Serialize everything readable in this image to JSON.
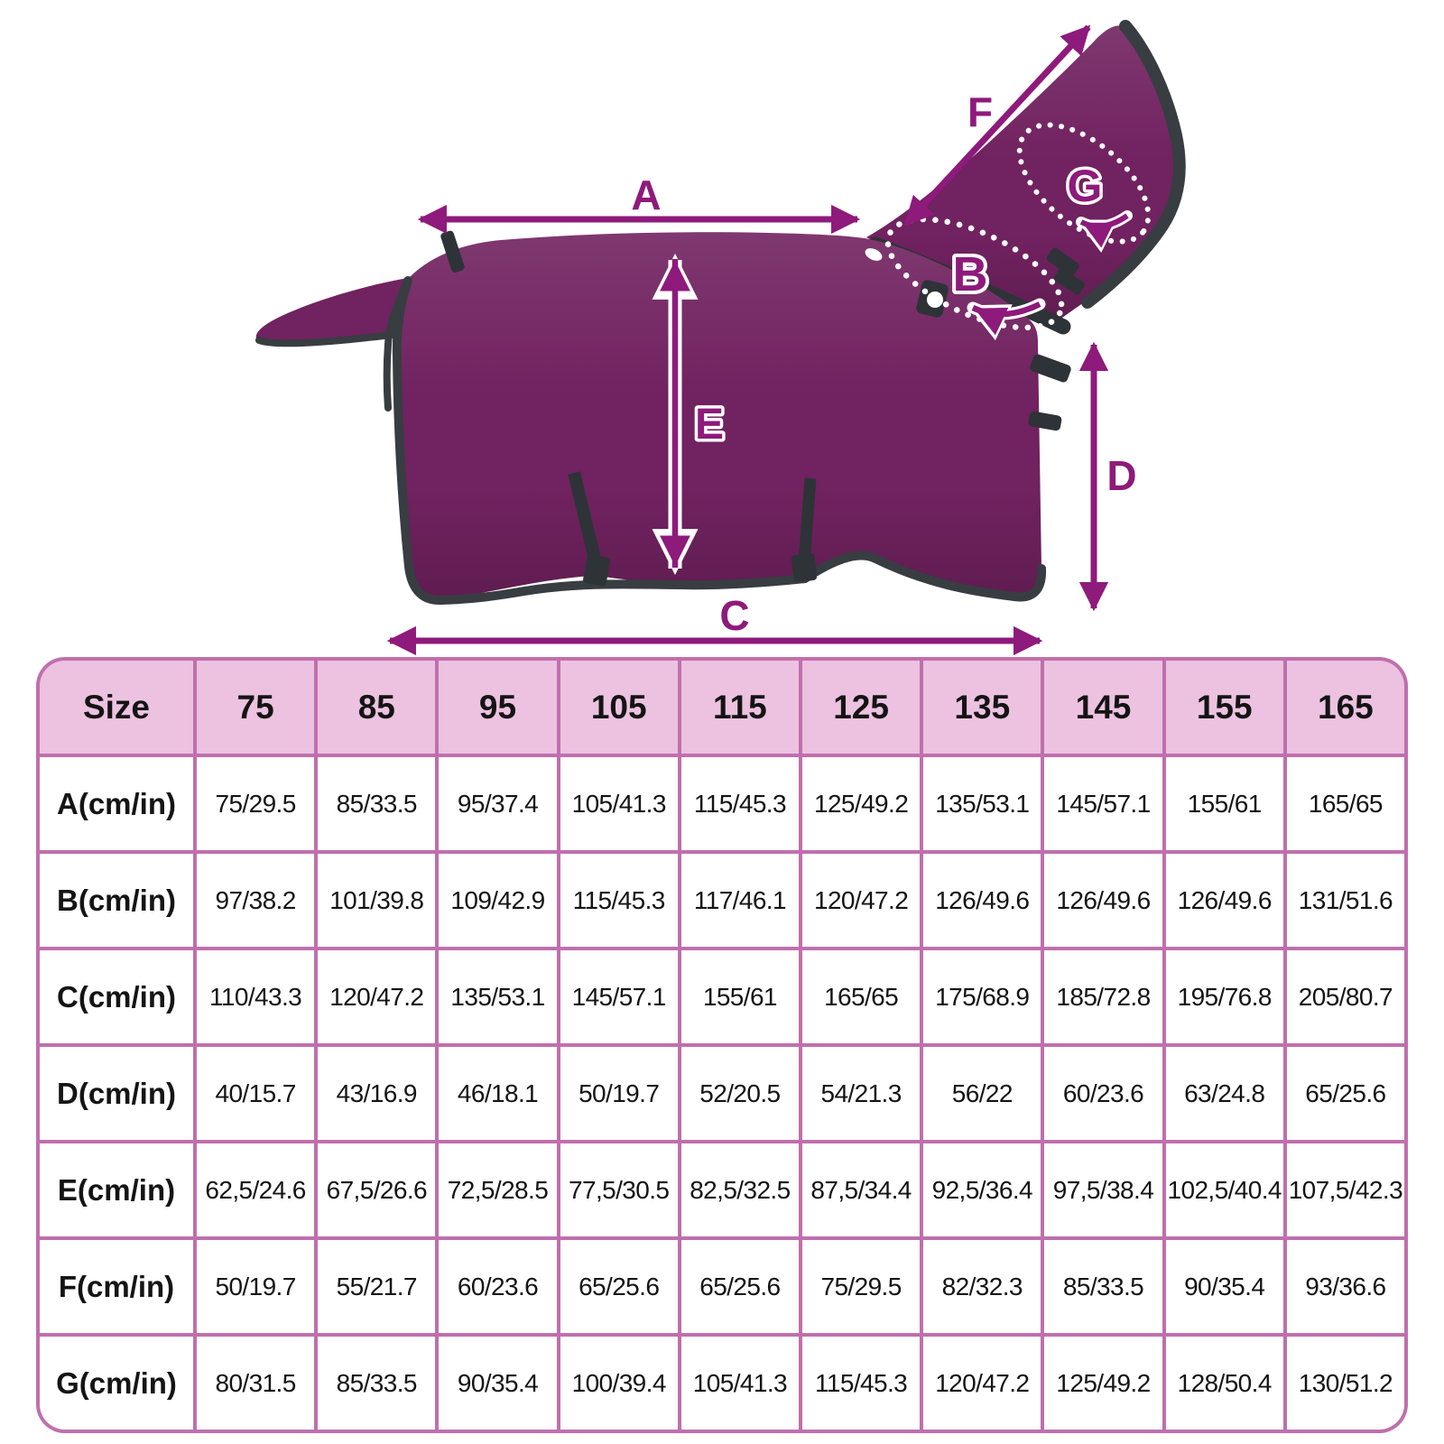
{
  "colors": {
    "arrow": "#8e1a7b",
    "blanket": "#712260",
    "trim": "#383d42",
    "strap": "#2e3338",
    "table-border": "#c06fad",
    "table-header-bg": "#ecc2e0",
    "table-cell-bg": "#ffffff",
    "table-text": "#141414",
    "label-outline": "#ffffff"
  },
  "diagram": {
    "description": "horse rug with detachable neck cover, measurement guide",
    "labels": {
      "a": "A",
      "b": "B",
      "c": "C",
      "d": "D",
      "e": "E",
      "f": "F",
      "g": "G"
    }
  },
  "table": {
    "size_header": "Size",
    "sizes": [
      "75",
      "85",
      "95",
      "105",
      "115",
      "125",
      "135",
      "145",
      "155",
      "165"
    ],
    "rows": [
      {
        "label": "A(cm/in)",
        "values": [
          "75/29.5",
          "85/33.5",
          "95/37.4",
          "105/41.3",
          "115/45.3",
          "125/49.2",
          "135/53.1",
          "145/57.1",
          "155/61",
          "165/65"
        ]
      },
      {
        "label": "B(cm/in)",
        "values": [
          "97/38.2",
          "101/39.8",
          "109/42.9",
          "115/45.3",
          "117/46.1",
          "120/47.2",
          "126/49.6",
          "126/49.6",
          "126/49.6",
          "131/51.6"
        ]
      },
      {
        "label": "C(cm/in)",
        "values": [
          "110/43.3",
          "120/47.2",
          "135/53.1",
          "145/57.1",
          "155/61",
          "165/65",
          "175/68.9",
          "185/72.8",
          "195/76.8",
          "205/80.7"
        ]
      },
      {
        "label": "D(cm/in)",
        "values": [
          "40/15.7",
          "43/16.9",
          "46/18.1",
          "50/19.7",
          "52/20.5",
          "54/21.3",
          "56/22",
          "60/23.6",
          "63/24.8",
          "65/25.6"
        ]
      },
      {
        "label": "E(cm/in)",
        "values": [
          "62,5/24.6",
          "67,5/26.6",
          "72,5/28.5",
          "77,5/30.5",
          "82,5/32.5",
          "87,5/34.4",
          "92,5/36.4",
          "97,5/38.4",
          "102,5/40.4",
          "107,5/42.3"
        ]
      },
      {
        "label": "F(cm/in)",
        "values": [
          "50/19.7",
          "55/21.7",
          "60/23.6",
          "65/25.6",
          "65/25.6",
          "75/29.5",
          "82/32.3",
          "85/33.5",
          "90/35.4",
          "93/36.6"
        ]
      },
      {
        "label": "G(cm/in)",
        "values": [
          "80/31.5",
          "85/33.5",
          "90/35.4",
          "100/39.4",
          "105/41.3",
          "115/45.3",
          "120/47.2",
          "125/49.2",
          "128/50.4",
          "130/51.2"
        ]
      }
    ]
  }
}
